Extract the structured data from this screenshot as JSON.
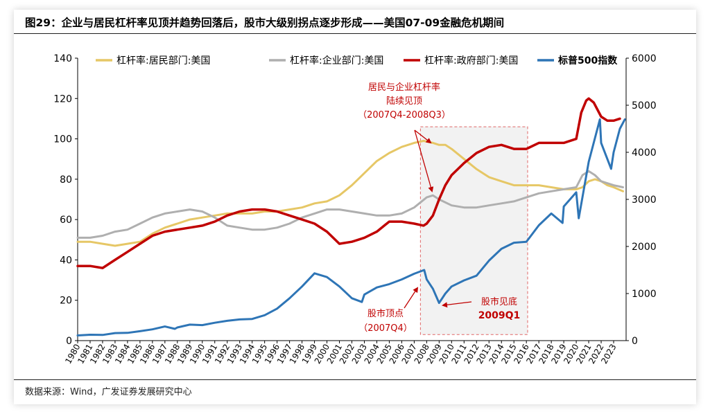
{
  "figure": {
    "title": "图29：企业与居民杠杆率见顶并趋势回落后，股市大级别拐点逐步形成——美国07-09金融危机期间",
    "source": "数据来源：Wind，广发证券发展研究中心"
  },
  "chart_data": {
    "type": "line",
    "x_labels": [
      "1980",
      "1981",
      "1982",
      "1983",
      "1984",
      "1985",
      "1986",
      "1987",
      "1988",
      "1989",
      "1990",
      "1991",
      "1992",
      "1993",
      "1994",
      "1995",
      "1996",
      "1997",
      "1998",
      "1999",
      "2000",
      "2001",
      "2002",
      "2003",
      "2004",
      "2005",
      "2006",
      "2007",
      "2008",
      "2009",
      "2010",
      "2011",
      "2012",
      "2013",
      "2014",
      "2015",
      "2016",
      "2017",
      "2018",
      "2019",
      "2020",
      "2021",
      "2022",
      "2023"
    ],
    "x_range": [
      1980,
      2024
    ],
    "y_left": {
      "range": [
        0,
        140
      ],
      "ticks": [
        "0",
        "20",
        "40",
        "60",
        "80",
        "100",
        "120",
        "140"
      ]
    },
    "y_right": {
      "range": [
        0,
        6000
      ],
      "ticks": [
        "0",
        "1000",
        "2000",
        "3000",
        "4000",
        "5000",
        "6000"
      ]
    },
    "grid": false,
    "legend_position": "top",
    "series": [
      {
        "name": "杠杆率:居民部门:美国",
        "color": "#E6C766",
        "axis": "left",
        "stroke": 3,
        "x": [
          1980,
          1981,
          1982,
          1983,
          1984,
          1985,
          1986,
          1987,
          1988,
          1989,
          1990,
          1991,
          1992,
          1993,
          1994,
          1995,
          1996,
          1997,
          1998,
          1999,
          2000,
          2001,
          2002,
          2003,
          2004,
          2005,
          2006,
          2007,
          2007.75,
          2008.5,
          2009,
          2009.5,
          2010,
          2011,
          2012,
          2013,
          2014,
          2015,
          2016,
          2017,
          2018,
          2019,
          2020,
          2020.5,
          2021,
          2021.5,
          2022,
          2022.5,
          2023,
          2023.75
        ],
        "y": [
          49,
          49,
          48,
          47,
          48,
          49,
          53,
          56,
          58,
          60,
          61,
          62,
          63,
          63,
          63,
          64,
          64,
          65,
          66,
          68,
          69,
          72,
          77,
          83,
          89,
          93,
          96,
          98,
          99,
          98,
          97,
          97,
          95,
          90,
          85,
          81,
          79,
          77,
          77,
          77,
          76,
          75,
          75,
          76,
          79,
          80,
          79,
          77,
          76,
          74
        ]
      },
      {
        "name": "杠杆率:企业部门:美国",
        "color": "#AFAFAF",
        "axis": "left",
        "stroke": 3,
        "x": [
          1980,
          1981,
          1982,
          1983,
          1984,
          1985,
          1986,
          1987,
          1988,
          1989,
          1990,
          1991,
          1992,
          1993,
          1994,
          1995,
          1996,
          1997,
          1998,
          1999,
          2000,
          2001,
          2002,
          2003,
          2004,
          2005,
          2006,
          2007,
          2008,
          2008.5,
          2009,
          2010,
          2011,
          2012,
          2013,
          2014,
          2015,
          2016,
          2017,
          2018,
          2019,
          2020,
          2020.5,
          2021,
          2021.5,
          2022,
          2022.5,
          2023,
          2023.75
        ],
        "y": [
          51,
          51,
          52,
          54,
          55,
          58,
          61,
          63,
          64,
          65,
          64,
          61,
          57,
          56,
          55,
          55,
          56,
          58,
          61,
          63,
          65,
          65,
          64,
          63,
          62,
          62,
          63,
          66,
          71,
          72,
          70,
          67,
          66,
          66,
          67,
          68,
          69,
          71,
          73,
          74,
          75,
          76,
          82,
          84,
          82,
          79,
          78,
          77,
          76
        ]
      },
      {
        "name": "杠杆率:政府部门:美国",
        "color": "#C00000",
        "axis": "left",
        "stroke": 3.5,
        "x": [
          1980,
          1981,
          1982,
          1983,
          1984,
          1985,
          1986,
          1987,
          1988,
          1989,
          1990,
          1991,
          1992,
          1993,
          1994,
          1995,
          1996,
          1997,
          1998,
          1999,
          2000,
          2001,
          2002,
          2003,
          2004,
          2004.6,
          2005,
          2006,
          2007,
          2007.75,
          2008,
          2008.5,
          2009,
          2009.5,
          2010,
          2011,
          2012,
          2013,
          2014,
          2015,
          2016,
          2017,
          2018,
          2019,
          2020,
          2020.4,
          2020.8,
          2021,
          2021.4,
          2022,
          2022.5,
          2023,
          2023.5
        ],
        "y": [
          37,
          37,
          36,
          40,
          44,
          48,
          52,
          54,
          55,
          56,
          57,
          59,
          62,
          64,
          65,
          65,
          64,
          62,
          60,
          58,
          54,
          48,
          49,
          51,
          54,
          57,
          59,
          59,
          58,
          57,
          58,
          62,
          70,
          77,
          82,
          88,
          93,
          96,
          97,
          95,
          95,
          98,
          98,
          98,
          100,
          113,
          119,
          120,
          118,
          111,
          109,
          109,
          110
        ]
      },
      {
        "name": "标普500指数",
        "color": "#2E75B6",
        "axis": "right",
        "stroke": 3,
        "x": [
          1980,
          1981,
          1982,
          1983,
          1984,
          1985,
          1986,
          1987,
          1987.8,
          1988,
          1989,
          1990,
          1991,
          1992,
          1993,
          1994,
          1995,
          1996,
          1997,
          1998,
          1999,
          2000,
          2001,
          2002,
          2002.8,
          2003,
          2004,
          2005,
          2006,
          2007,
          2007.8,
          2008,
          2008.5,
          2009,
          2009.5,
          2010,
          2011,
          2012,
          2013,
          2014,
          2015,
          2016,
          2017,
          2018,
          2018.9,
          2019,
          2020,
          2020.2,
          2020.6,
          2021,
          2021.9,
          2022,
          2022.8,
          2023,
          2023.5,
          2023.9
        ],
        "y": [
          110,
          125,
          120,
          160,
          165,
          200,
          240,
          300,
          250,
          280,
          340,
          330,
          380,
          420,
          450,
          460,
          540,
          680,
          900,
          1150,
          1430,
          1350,
          1150,
          900,
          820,
          980,
          1130,
          1200,
          1300,
          1420,
          1500,
          1300,
          1100,
          800,
          1000,
          1150,
          1280,
          1380,
          1700,
          1950,
          2080,
          2100,
          2450,
          2700,
          2500,
          2850,
          3150,
          2600,
          3200,
          3800,
          4700,
          4200,
          3650,
          4000,
          4500,
          4700
        ]
      }
    ],
    "annotations": [
      {
        "lines": [
          "居民与企业杠杆率",
          "陆续见顶",
          "（2007Q4-2008Q3）"
        ],
        "color": "#C00000"
      },
      {
        "lines": [
          "股市顶点",
          "（2007Q4）"
        ],
        "color": "#C00000"
      },
      {
        "lines": [
          "股市见底",
          "2009Q1"
        ],
        "color": "#C00000"
      }
    ],
    "shaded_region": {
      "x": [
        2007.5,
        2016.1
      ],
      "y": [
        3,
        106
      ]
    }
  }
}
